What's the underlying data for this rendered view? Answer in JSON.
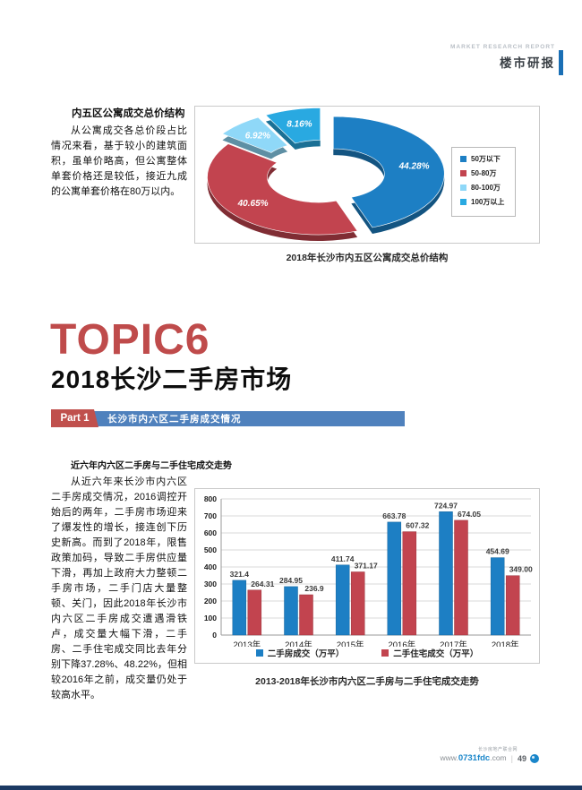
{
  "header": {
    "eyebrow": "MARKET RESEARCH REPORT",
    "title": "楼市研报"
  },
  "section1": {
    "heading": "内五区公寓成交总价结构",
    "body": "从公寓成交各总价段占比情况来看，基于较小的建筑面积，虽单价略高，但公寓整体单套价格还是较低，接近九成的公寓单套价格在80万以内。",
    "caption": "2018年长沙市内五区公寓成交总价结构"
  },
  "topic": {
    "label": "TOPIC6",
    "title": "2018长沙二手房市场"
  },
  "part1": {
    "badge": "Part 1",
    "title": "长沙市内六区二手房成交情况"
  },
  "section2": {
    "heading": "近六年内六区二手房与二手住宅成交走势",
    "body": "从近六年来长沙市内六区二手房成交情况，2016调控开始后的两年，二手房市场迎来了爆发性的增长，接连创下历史新高。而到了2018年，限售政策加码，导致二手房供应量下滑，再加上政府大力整顿二手房市场，二手门店大量整顿、关门，因此2018年长沙市内六区二手房成交遭遇滑铁卢，成交量大幅下滑，二手房、二手住宅成交同比去年分别下降37.28%、48.22%，但相较2016年之前，成交量仍处于较高水平。",
    "caption": "2013-2018年长沙市内六区二手房与二手住宅成交走势"
  },
  "footer": {
    "site_name": "长沙房地产联合网",
    "url_prefix": "www.",
    "url_highlight": "0731fdc",
    "url_suffix": ".com",
    "page_number": "49"
  },
  "chart_data": [
    {
      "type": "pie",
      "donut": true,
      "title": "2018年长沙市内五区公寓成交总价结构",
      "labels": [
        "50万以下",
        "50-80万",
        "80-100万",
        "100万以上"
      ],
      "values": [
        44.28,
        40.65,
        6.92,
        8.16
      ],
      "data_labels": [
        "44.28%",
        "40.65%",
        "6.92%",
        "8.16%"
      ],
      "colors": [
        "#1d7fc4",
        "#c2444f",
        "#8fd8f8",
        "#29a9e1"
      ],
      "legend_position": "right"
    },
    {
      "type": "bar",
      "title": "2013-2018年长沙市内六区二手房与二手住宅成交走势",
      "categories": [
        "2013年",
        "2014年",
        "2015年",
        "2016年",
        "2017年",
        "2018年"
      ],
      "series": [
        {
          "name": "二手房成交（万平）",
          "color": "#1d7fc4",
          "values": [
            321.4,
            284.95,
            411.74,
            663.78,
            724.97,
            454.69
          ],
          "labels": [
            "321.4",
            "284.95",
            "411.74",
            "663.78",
            "724.97",
            "454.69"
          ]
        },
        {
          "name": "二手住宅成交（万平）",
          "color": "#c2444f",
          "values": [
            264.31,
            236.9,
            371.17,
            607.32,
            674.05,
            349.0
          ],
          "labels": [
            "264.31",
            "236.9",
            "371.17",
            "607.32",
            "674.05",
            "349.00"
          ]
        }
      ],
      "ylabel": "",
      "ylim": [
        0,
        800
      ],
      "ytick_step": 100,
      "yticks": [
        "0",
        "100",
        "200",
        "300",
        "400",
        "500",
        "600",
        "700",
        "800"
      ],
      "grid": true,
      "legend_position": "bottom"
    }
  ]
}
